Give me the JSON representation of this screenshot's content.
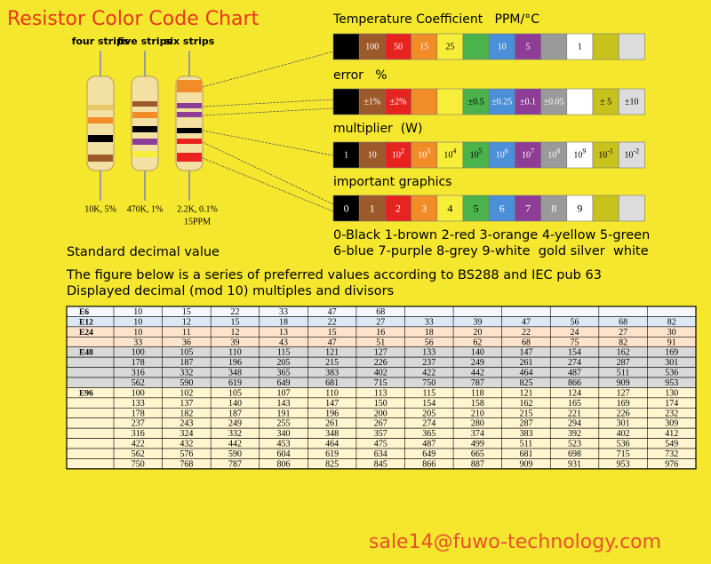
{
  "header": {
    "title": "Resistor Color Code Chart"
  },
  "resistors": [
    {
      "label": "four strips",
      "caption": [
        "10K, 5%"
      ]
    },
    {
      "label": "five strips",
      "caption": [
        "470K, 1%"
      ]
    },
    {
      "label": "six strips",
      "caption": [
        "2.2K, 0.1%",
        "15PPM"
      ]
    }
  ],
  "color_chart": {
    "palette": [
      {
        "name": "black",
        "fill": "#000000",
        "ink": "#ffffff"
      },
      {
        "name": "brown",
        "fill": "#9c5a2a",
        "ink": "#ffffff"
      },
      {
        "name": "red",
        "fill": "#e8231f",
        "ink": "#ffffff"
      },
      {
        "name": "orange",
        "fill": "#f28c28",
        "ink": "#ffffff"
      },
      {
        "name": "yellow",
        "fill": "#f7ee3a",
        "ink": "#000000"
      },
      {
        "name": "green",
        "fill": "#4bb34b",
        "ink": "#000000"
      },
      {
        "name": "blue",
        "fill": "#4a8fd8",
        "ink": "#ffffff"
      },
      {
        "name": "purple",
        "fill": "#8e3d97",
        "ink": "#ffffff"
      },
      {
        "name": "grey",
        "fill": "#9a9a9a",
        "ink": "#ffffff"
      },
      {
        "name": "white",
        "fill": "#ffffff",
        "ink": "#000000"
      },
      {
        "name": "gold",
        "fill": "#c8c21c",
        "ink": "#000000"
      },
      {
        "name": "silver",
        "fill": "#dcdcdc",
        "ink": "#000000"
      }
    ],
    "rows": [
      {
        "label": "Temperature Coefficient   PPM/°C",
        "cells": [
          null,
          {
            "text": "100"
          },
          {
            "text": "50"
          },
          {
            "text": "15"
          },
          {
            "text": "25"
          },
          null,
          {
            "text": "10"
          },
          {
            "text": "5"
          },
          null,
          {
            "text": "1"
          },
          null,
          null
        ]
      },
      {
        "label": "error   %",
        "cells": [
          null,
          {
            "text": "±1%"
          },
          {
            "text": "±2%"
          },
          null,
          null,
          {
            "text": "±0.5"
          },
          {
            "text": "±0.25"
          },
          {
            "text": "±0.1"
          },
          {
            "text": "±0.05"
          },
          null,
          {
            "text": "± 5"
          },
          {
            "text": "±10"
          }
        ]
      },
      {
        "label": "multiplier  (W)",
        "cells": [
          {
            "text": "1"
          },
          {
            "text": "10"
          },
          {
            "text": "10",
            "sup": "2"
          },
          {
            "text": "10",
            "sup": "3"
          },
          {
            "text": "10",
            "sup": "4"
          },
          {
            "text": "10",
            "sup": "5"
          },
          {
            "text": "10",
            "sup": "6"
          },
          {
            "text": "10",
            "sup": "7"
          },
          {
            "text": "10",
            "sup": "8"
          },
          {
            "text": "10",
            "sup": "9"
          },
          {
            "text": "10",
            "sup": "-1"
          },
          {
            "text": "10",
            "sup": "-2"
          }
        ]
      },
      {
        "label": "important graphics",
        "cells": [
          {
            "text": "0"
          },
          {
            "text": "1"
          },
          {
            "text": "2"
          },
          {
            "text": "3"
          },
          {
            "text": "4"
          },
          {
            "text": "5"
          },
          {
            "text": "6"
          },
          {
            "text": "7"
          },
          {
            "text": "8"
          },
          {
            "text": "9"
          },
          null,
          null
        ]
      }
    ],
    "legend": [
      "0-Black 1-brown 2-red 3-orange 4-yellow 5-green",
      "6-blue 7-purple 8-grey 9-white  gold silver  white"
    ]
  },
  "section": {
    "title": "Standard decimal value",
    "description": [
      "The figure below is a series of preferred values according to BS288 and IEC pub 63",
      "Displayed decimal (mod 10) multiples and divisors"
    ]
  },
  "table": {
    "groups": [
      {
        "label": "E6",
        "color": "#f4f8fc",
        "rows": [
          [
            10,
            15,
            22,
            33,
            47,
            68,
            null,
            null,
            null,
            null,
            null,
            null
          ]
        ]
      },
      {
        "label": "E12",
        "color": "#dce8f5",
        "rows": [
          [
            10,
            12,
            15,
            18,
            22,
            27,
            33,
            39,
            47,
            56,
            68,
            82
          ]
        ]
      },
      {
        "label": "E24",
        "color": "#fde3cc",
        "rows": [
          [
            10,
            11,
            12,
            13,
            15,
            16,
            18,
            20,
            22,
            24,
            27,
            30
          ],
          [
            33,
            36,
            39,
            43,
            47,
            51,
            56,
            62,
            68,
            75,
            82,
            91
          ]
        ]
      },
      {
        "label": "E48",
        "color": "#d9d9d9",
        "rows": [
          [
            100,
            105,
            110,
            115,
            121,
            127,
            133,
            140,
            147,
            154,
            162,
            169
          ],
          [
            178,
            187,
            196,
            205,
            215,
            226,
            237,
            249,
            261,
            274,
            287,
            301
          ],
          [
            316,
            332,
            348,
            365,
            383,
            402,
            422,
            442,
            464,
            487,
            511,
            536
          ],
          [
            562,
            590,
            619,
            649,
            681,
            715,
            750,
            787,
            825,
            866,
            909,
            953
          ]
        ]
      },
      {
        "label": "E96",
        "color": "#fff5cf",
        "rows": [
          [
            100,
            102,
            105,
            107,
            110,
            113,
            115,
            118,
            121,
            124,
            127,
            130
          ],
          [
            133,
            137,
            140,
            143,
            147,
            150,
            154,
            158,
            162,
            165,
            169,
            174
          ],
          [
            178,
            182,
            187,
            191,
            196,
            200,
            205,
            210,
            215,
            221,
            226,
            232
          ],
          [
            237,
            243,
            249,
            255,
            261,
            267,
            274,
            280,
            287,
            294,
            301,
            309
          ],
          [
            316,
            324,
            332,
            340,
            348,
            357,
            365,
            374,
            383,
            392,
            402,
            412
          ],
          [
            422,
            432,
            442,
            453,
            464,
            475,
            487,
            499,
            511,
            523,
            536,
            549
          ],
          [
            562,
            576,
            590,
            604,
            619,
            634,
            649,
            665,
            681,
            698,
            715,
            732
          ],
          [
            750,
            768,
            787,
            806,
            825,
            845,
            866,
            887,
            909,
            931,
            953,
            976
          ]
        ]
      }
    ]
  },
  "footer": {
    "contact": "sale14@fuwo-technology.com"
  }
}
